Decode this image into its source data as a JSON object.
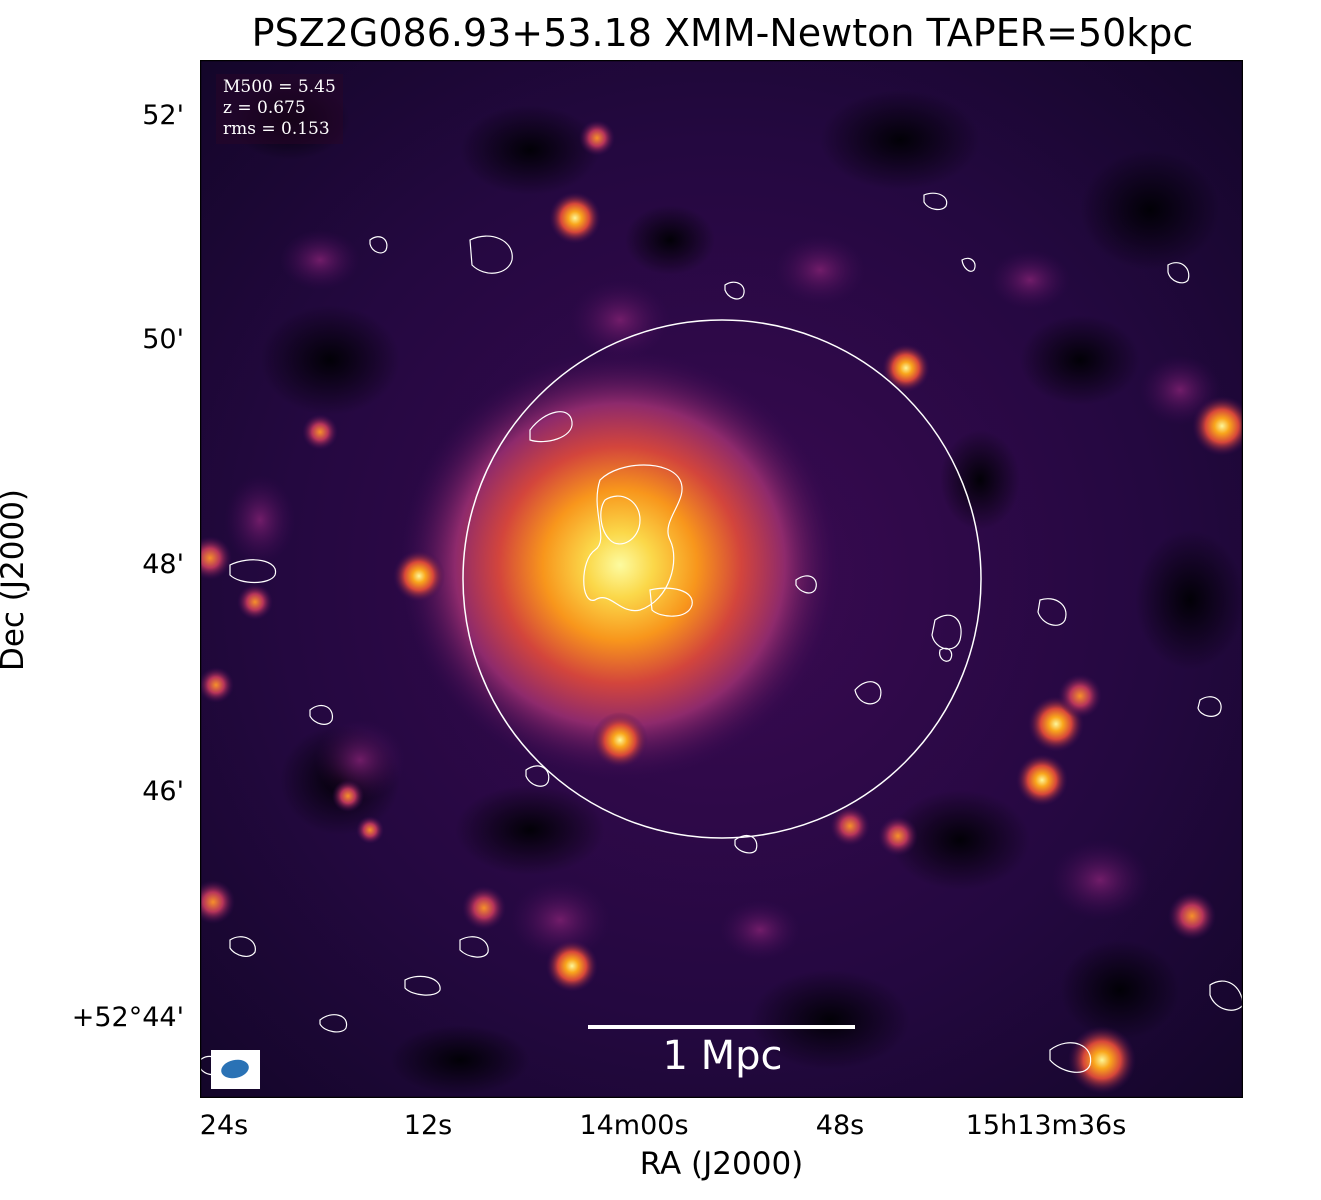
{
  "figure": {
    "title": "PSZ2G086.93+53.18 XMM-Newton TAPER=50kpc",
    "xlabel": "RA (J2000)",
    "ylabel": "Dec (J2000)",
    "x_ticks": [
      "24s",
      "12s",
      "14m00s",
      "48s",
      "15h13m36s"
    ],
    "y_ticks": [
      "52'",
      "50'",
      "48'",
      "46'",
      "+52°44'"
    ]
  },
  "info_box": {
    "m500": "M500 = 5.45",
    "z": "z = 0.675",
    "rms": "rms = 0.153"
  },
  "scale_bar": {
    "label": "1 Mpc"
  },
  "colors": {
    "colormap": "inferno",
    "contour": "#ffffff",
    "beam": "#2a72b5"
  }
}
